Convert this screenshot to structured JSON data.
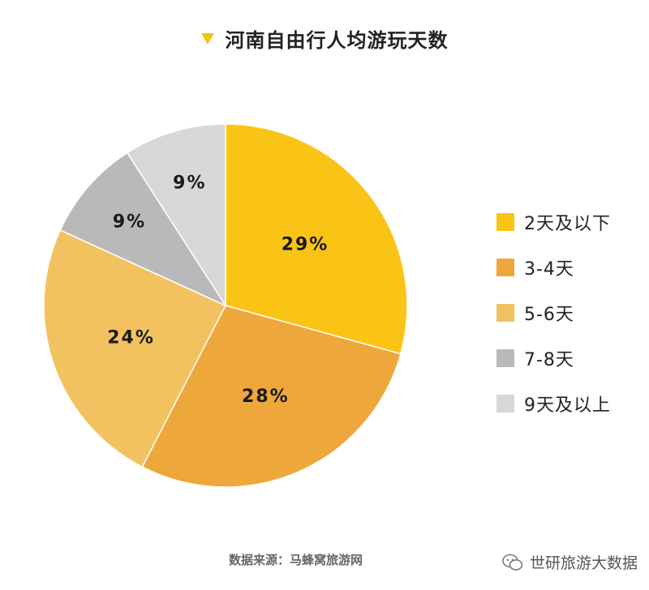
{
  "header": {
    "title": "河南自由行人均游玩天数"
  },
  "colors": {
    "accent": "#f5c21a",
    "slices": [
      "#fac416",
      "#eda73a",
      "#f2c260",
      "#b9b9b9",
      "#d7d7d7"
    ]
  },
  "chart_data": {
    "type": "pie",
    "title": "河南自由行人均游玩天数",
    "categories": [
      "2天及以下",
      "3-4天",
      "5-6天",
      "7-8天",
      "9天及以上"
    ],
    "values": [
      29,
      28,
      24,
      9,
      9
    ],
    "value_labels": [
      "29%",
      "28%",
      "24%",
      "9%",
      "9%"
    ],
    "legend": "right",
    "start": "top",
    "direction": "clockwise"
  },
  "footer": {
    "source": "数据来源：马蜂窝旅游网",
    "watermark": "世研旅游大数据",
    "watermark_icon": "wechat-icon"
  }
}
